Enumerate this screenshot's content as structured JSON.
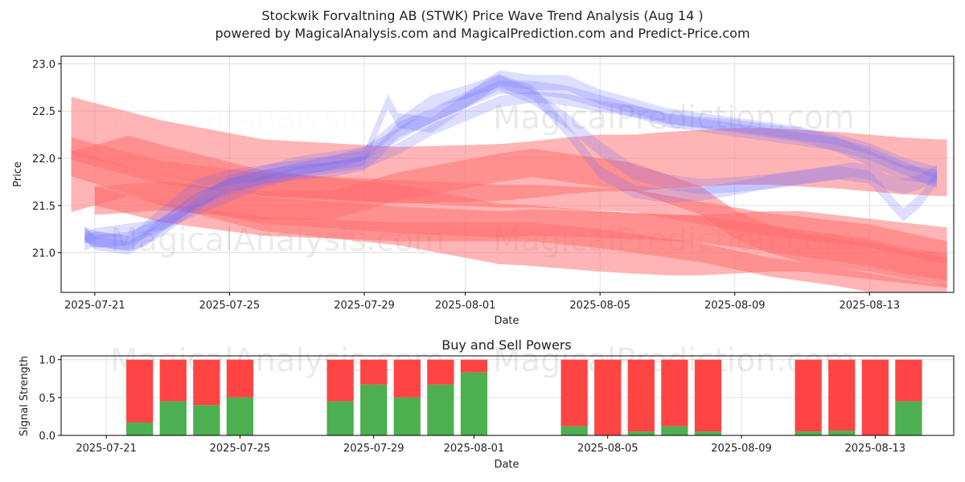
{
  "title_line1": "Stockwik Forvaltning AB (STWK) Price Wave Trend Analysis (Aug 14 )",
  "title_line2": "powered by MagicalAnalysis.com and MagicalPrediction.com and Predict-Price.com",
  "watermarks": [
    "MagicalAnalysis.com",
    "MagicalPrediction.com"
  ],
  "colors": {
    "buy": "#4caf50",
    "sell": "#ff4444",
    "blue": "#6a6aff",
    "red": "#ff6b6b"
  },
  "chart_data": [
    {
      "type": "line",
      "title": "",
      "xlabel": "Date",
      "ylabel": "Price",
      "ylim": [
        20.58,
        23.08
      ],
      "xlim": [
        "2025-07-20",
        "2025-08-15.5"
      ],
      "yticks": [
        "21.0",
        "21.5",
        "22.0",
        "22.5",
        "23.0"
      ],
      "xticks": [
        "2025-07-21",
        "2025-07-25",
        "2025-07-29",
        "2025-08-01",
        "2025-08-05",
        "2025-08-09",
        "2025-08-13"
      ],
      "red_bands": [
        {
          "x": [
            -0.7,
            2,
            5,
            9,
            12,
            13,
            14,
            15,
            16,
            17,
            18,
            19,
            20,
            21,
            22,
            23,
            24,
            25,
            25.3
          ],
          "y": [
            22.35,
            22.1,
            21.9,
            21.82,
            21.85,
            21.88,
            21.92,
            21.95,
            21.95,
            21.98,
            22.0,
            22.02,
            22.02,
            22.0,
            21.98,
            21.95,
            21.92,
            21.9,
            21.9
          ],
          "w": 0.3
        },
        {
          "x": [
            -0.7,
            1,
            2,
            5,
            9,
            12,
            13,
            14,
            15,
            16,
            17,
            18,
            19,
            20,
            21,
            22,
            23,
            24,
            25,
            25.3
          ],
          "y": [
            21.75,
            21.92,
            21.82,
            21.55,
            21.4,
            21.2,
            21.18,
            21.15,
            21.12,
            21.1,
            21.08,
            21.08,
            21.1,
            21.12,
            21.12,
            21.08,
            21.04,
            21.0,
            20.96,
            20.95
          ],
          "w": 0.32
        },
        {
          "x": [
            -0.7,
            2,
            5,
            9,
            12,
            13,
            16,
            18,
            20,
            23,
            25.3
          ],
          "y": [
            22.1,
            21.85,
            21.72,
            21.65,
            21.6,
            21.6,
            21.55,
            21.42,
            21.3,
            21.18,
            21.0
          ],
          "w": 0.12
        },
        {
          "x": [
            0,
            2,
            5,
            7,
            9,
            12,
            13,
            14,
            16,
            18,
            19,
            20,
            21,
            22,
            23,
            24,
            25,
            25.3
          ],
          "y": [
            21.55,
            21.6,
            21.5,
            21.5,
            21.7,
            21.9,
            21.95,
            21.9,
            21.8,
            21.55,
            21.3,
            21.15,
            21.05,
            21.0,
            20.95,
            20.88,
            20.82,
            20.78
          ],
          "w": 0.15
        },
        {
          "x": [
            0,
            2,
            5,
            9,
            12,
            13,
            15,
            18,
            20,
            22,
            24,
            25.3
          ],
          "y": [
            21.6,
            21.42,
            21.28,
            21.22,
            21.22,
            21.22,
            21.15,
            21.0,
            20.85,
            20.75,
            20.62,
            20.55
          ],
          "w": 0.1
        },
        {
          "x": [
            -0.7,
            2,
            5,
            9,
            12,
            13,
            15,
            18,
            20,
            22,
            23,
            24,
            25.3
          ],
          "y": [
            21.95,
            21.65,
            21.45,
            21.35,
            21.3,
            21.32,
            21.3,
            21.25,
            21.15,
            21.05,
            21.0,
            20.92,
            20.85
          ],
          "w": 0.14
        }
      ],
      "blue_bands": [
        {
          "x": [
            -0.3,
            0,
            0.5,
            1,
            1.5,
            2,
            3,
            4,
            5,
            6,
            7,
            8,
            8.5,
            9,
            10,
            11,
            12,
            13,
            14,
            15,
            16,
            17,
            18,
            19,
            20,
            21,
            22,
            22.5,
            23,
            23.5,
            24,
            24.5,
            25
          ],
          "y": [
            21.2,
            21.15,
            21.12,
            21.1,
            21.15,
            21.3,
            21.55,
            21.7,
            21.8,
            21.85,
            21.88,
            21.95,
            22.1,
            22.3,
            22.45,
            22.62,
            22.8,
            22.65,
            22.4,
            22.1,
            21.85,
            21.75,
            21.7,
            21.72,
            21.75,
            21.8,
            21.85,
            21.88,
            21.85,
            21.75,
            21.7,
            21.75,
            21.85
          ],
          "w": 0.08
        },
        {
          "x": [
            -0.3,
            0,
            1,
            2,
            3,
            4,
            5,
            6,
            7,
            8,
            9,
            10,
            11,
            12,
            13,
            14,
            15,
            16,
            17,
            18,
            19,
            20,
            21,
            22,
            23,
            23.5,
            24,
            24.5,
            25
          ],
          "y": [
            21.2,
            21.1,
            21.05,
            21.25,
            21.5,
            21.75,
            21.85,
            21.95,
            22.0,
            22.05,
            22.35,
            22.6,
            22.7,
            22.82,
            22.7,
            22.3,
            21.85,
            21.65,
            21.6,
            21.62,
            21.68,
            21.75,
            21.8,
            21.85,
            21.8,
            21.6,
            21.4,
            21.55,
            21.8
          ],
          "w": 0.07
        },
        {
          "x": [
            -0.3,
            0,
            1,
            2,
            3,
            4,
            5,
            6,
            7,
            8,
            9,
            10,
            11,
            12,
            13,
            14,
            15,
            16,
            17,
            18,
            19,
            20,
            21,
            22,
            23,
            24,
            25
          ],
          "y": [
            21.15,
            21.2,
            21.25,
            21.3,
            21.45,
            21.6,
            21.75,
            21.85,
            21.9,
            21.95,
            22.1,
            22.3,
            22.45,
            22.6,
            22.65,
            22.62,
            22.55,
            22.5,
            22.42,
            22.38,
            22.35,
            22.3,
            22.25,
            22.2,
            22.1,
            21.95,
            21.85
          ],
          "w": 0.06
        },
        {
          "x": [
            -0.3,
            0,
            1,
            2,
            3,
            4,
            5,
            6,
            7,
            8,
            8.7,
            9,
            10,
            11,
            12,
            13,
            14,
            15,
            16,
            17,
            18,
            19,
            20,
            21,
            22,
            23,
            24,
            25
          ],
          "y": [
            21.1,
            21.15,
            21.1,
            21.4,
            21.7,
            21.8,
            21.85,
            21.9,
            21.95,
            22.0,
            22.6,
            22.4,
            22.35,
            22.6,
            22.85,
            22.8,
            22.8,
            22.65,
            22.55,
            22.45,
            22.4,
            22.35,
            22.3,
            22.25,
            22.15,
            22.0,
            21.85,
            21.8
          ],
          "w": 0.08
        },
        {
          "x": [
            -0.3,
            0,
            1,
            2,
            3,
            4,
            5,
            6,
            7,
            8,
            9,
            10,
            11,
            12,
            13,
            14,
            15,
            16,
            17,
            18,
            19,
            20,
            21,
            22,
            23,
            24,
            25
          ],
          "y": [
            21.2,
            21.12,
            21.15,
            21.3,
            21.55,
            21.72,
            21.8,
            21.88,
            21.95,
            22.05,
            22.25,
            22.45,
            22.6,
            22.75,
            22.75,
            22.7,
            22.6,
            22.5,
            22.4,
            22.35,
            22.3,
            22.25,
            22.2,
            22.15,
            22.05,
            21.9,
            21.75
          ],
          "w": 0.07
        }
      ]
    },
    {
      "type": "bar",
      "title": "Buy and Sell Powers",
      "xlabel": "Date",
      "ylabel": "Signal Strength",
      "ylim": [
        0,
        1.05
      ],
      "yticks": [
        "0.0",
        "0.5",
        "1.0"
      ],
      "xticks": [
        "2025-07-21",
        "2025-07-25",
        "2025-07-29",
        "2025-08-01",
        "2025-08-05",
        "2025-08-09",
        "2025-08-13"
      ],
      "bars": [
        {
          "x": 1,
          "buy": 0.17
        },
        {
          "x": 2,
          "buy": 0.45
        },
        {
          "x": 3,
          "buy": 0.4
        },
        {
          "x": 4,
          "buy": 0.5
        },
        {
          "x": 7,
          "buy": 0.45
        },
        {
          "x": 8,
          "buy": 0.67
        },
        {
          "x": 9,
          "buy": 0.5
        },
        {
          "x": 10,
          "buy": 0.67
        },
        {
          "x": 11,
          "buy": 0.83
        },
        {
          "x": 14,
          "buy": 0.12
        },
        {
          "x": 15,
          "buy": 0.0
        },
        {
          "x": 16,
          "buy": 0.05
        },
        {
          "x": 17,
          "buy": 0.12
        },
        {
          "x": 18,
          "buy": 0.05
        },
        {
          "x": 21,
          "buy": 0.05
        },
        {
          "x": 22,
          "buy": 0.06
        },
        {
          "x": 23,
          "buy": 0.0
        },
        {
          "x": 24,
          "buy": 0.45
        }
      ]
    }
  ]
}
